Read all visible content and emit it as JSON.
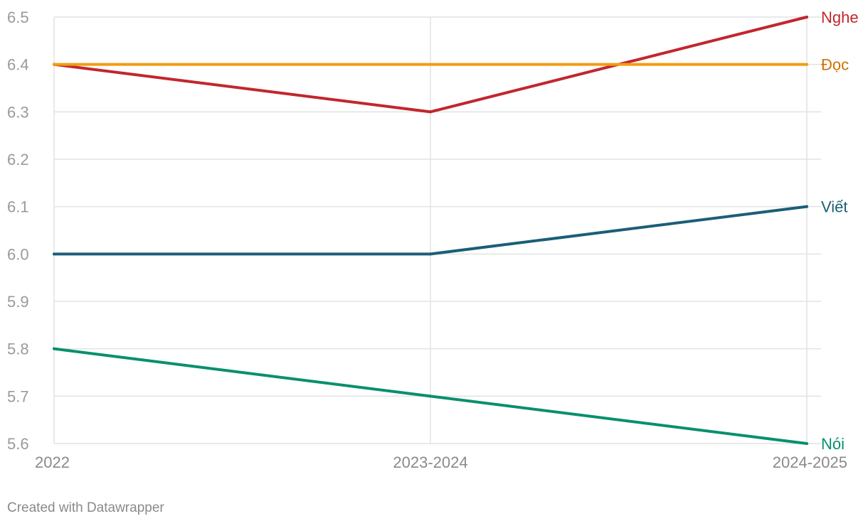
{
  "chart_data": {
    "type": "line",
    "title": "",
    "xlabel": "",
    "ylabel": "",
    "categories": [
      "2022",
      "2023-2024",
      "2024-2025"
    ],
    "ylim": [
      5.6,
      6.5
    ],
    "yticks": [
      "6.5",
      "6.4",
      "6.3",
      "6.2",
      "6.1",
      "6.0",
      "5.9",
      "5.8",
      "5.7",
      "5.6"
    ],
    "grid": true,
    "legend": "direct labels at line ends (right)",
    "series": [
      {
        "name": "Nghe",
        "values": [
          6.4,
          6.3,
          6.5
        ],
        "color": "#c1272d"
      },
      {
        "name": "Đọc",
        "values": [
          6.4,
          6.4,
          6.4
        ],
        "color": "#f39c12",
        "label_color": "#d07000"
      },
      {
        "name": "Viết",
        "values": [
          6.0,
          6.0,
          6.1
        ],
        "color": "#1b5e78"
      },
      {
        "name": "Nói",
        "values": [
          5.8,
          5.7,
          5.6
        ],
        "color": "#0a8f6e"
      }
    ]
  },
  "footer": {
    "credit": "Created with Datawrapper"
  }
}
